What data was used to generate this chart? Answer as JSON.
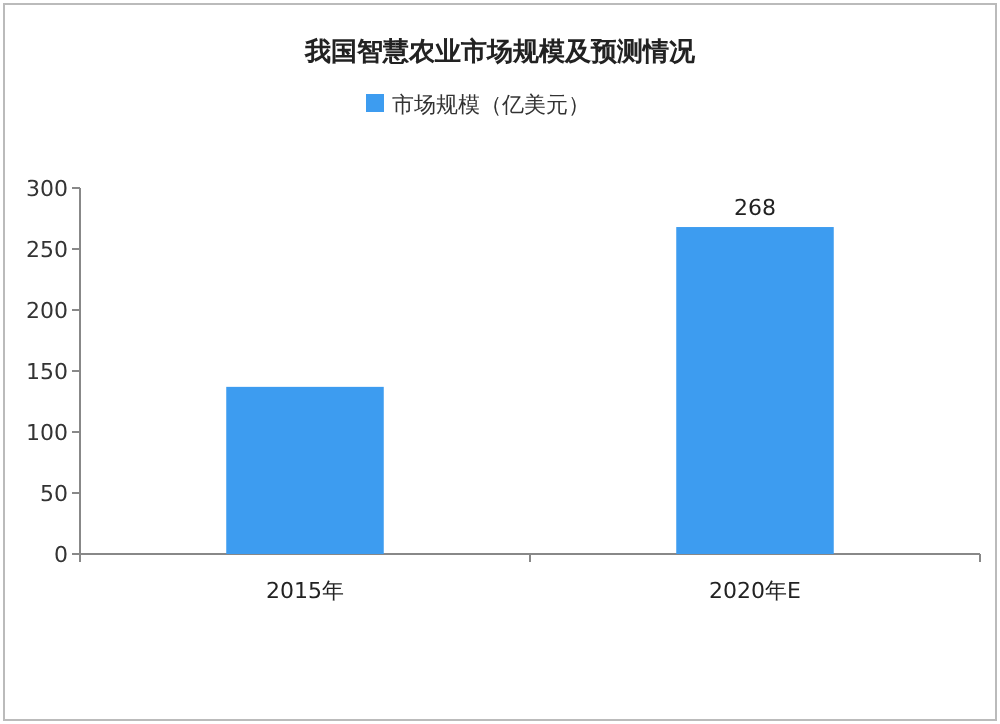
{
  "chart_data": {
    "type": "bar",
    "title": "我国智慧农业市场规模及预测情况",
    "categories": [
      "2015年",
      "2020年E"
    ],
    "series": [
      {
        "name": "市场规模（亿美元）",
        "color": "#3d9cf0",
        "values": [
          137,
          268
        ],
        "value_labels": [
          null,
          "268"
        ]
      }
    ],
    "ylim": [
      0,
      300
    ],
    "yticks": [
      0,
      50,
      100,
      150,
      200,
      250,
      300
    ],
    "legend": "top",
    "grid": false
  }
}
